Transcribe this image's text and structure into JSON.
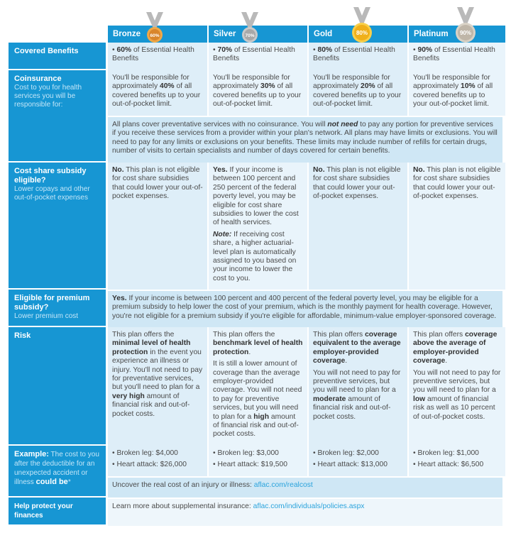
{
  "plans": [
    {
      "name": "Bronze",
      "medal": "60%",
      "color": "#d9852b",
      "ring": "#f0a847"
    },
    {
      "name": "Silver",
      "medal": "70%",
      "color": "#a8a8a8",
      "ring": "#c9c9c9"
    },
    {
      "name": "Gold",
      "medal": "80%",
      "color": "#f0b01a",
      "ring": "#f8cf4a"
    },
    {
      "name": "Platinum",
      "medal": "90%",
      "color": "#bfb6a8",
      "ring": "#d9d2c6"
    }
  ],
  "rows": {
    "covered": {
      "title": "Covered Benefits",
      "cells": [
        [
          {
            "t": "• "
          },
          {
            "t": "60%",
            "b": 1
          },
          {
            "t": " of Essential Health Benefits"
          }
        ],
        [
          {
            "t": "• "
          },
          {
            "t": "70%",
            "b": 1
          },
          {
            "t": " of Essential Health Benefits"
          }
        ],
        [
          {
            "t": "• "
          },
          {
            "t": "80%",
            "b": 1
          },
          {
            "t": " of Essential Health Benefits"
          }
        ],
        [
          {
            "t": "• "
          },
          {
            "t": "90%",
            "b": 1
          },
          {
            "t": " of Essential Health Benefits"
          }
        ]
      ]
    },
    "coinsurance": {
      "title": "Coinsurance",
      "subtitle": "Cost to you for health services you will be responsible for:",
      "cells": [
        [
          {
            "t": "You'll be responsible for approximately "
          },
          {
            "t": "40%",
            "b": 1
          },
          {
            "t": " of all covered benefits up to your out-of-pocket limit."
          }
        ],
        [
          {
            "t": "You'll be responsible for approximately "
          },
          {
            "t": "30%",
            "b": 1
          },
          {
            "t": " of all covered benefits up to your out-of-pocket limit."
          }
        ],
        [
          {
            "t": "You'll be responsible for approximately "
          },
          {
            "t": "20%",
            "b": 1
          },
          {
            "t": " of all covered benefits up to your out-of-pocket limit."
          }
        ],
        [
          {
            "t": "You'll be responsible for approximately "
          },
          {
            "t": "10%",
            "b": 1
          },
          {
            "t": " of all covered benefits up to your out-of-pocket limit."
          }
        ]
      ],
      "shared": [
        {
          "t": "All plans cover preventative services with no coinsurance. You will "
        },
        {
          "t": "not need",
          "i": 1
        },
        {
          "t": " to pay any portion for preventive services if you receive these services from a provider within your plan's network. All plans may have limits or exclusions. You will need to pay for any limits or exclusions on your benefits. These limits may include number of refills for certain drugs, number of visits to certain specialists and number of days covered for certain benefits."
        }
      ]
    },
    "costshare": {
      "title": "Cost share subsidy eligible?",
      "subtitle": "Lower copays and other out-of-pocket expenses",
      "cells": [
        [
          {
            "t": "No.",
            "b": 1
          },
          {
            "t": " This plan is not eligible for cost share subsidies that could lower your out-of-pocket expenses."
          }
        ],
        [
          {
            "t": "Yes.",
            "b": 1
          },
          {
            "t": " If your income is between 100 percent and 250 percent of the federal poverty level, you may be eligible for cost share subsidies to lower the cost of health services."
          },
          {
            "p": 1
          },
          {
            "t": "Note:",
            "i": 1
          },
          {
            "t": " If receiving cost share, a higher actuarial-level plan is automatically assigned to you based on your income to lower the cost to you."
          }
        ],
        [
          {
            "t": "No.",
            "b": 1
          },
          {
            "t": " This plan is not eligible for cost share subsidies that could lower your out-of-pocket expenses."
          }
        ],
        [
          {
            "t": "No.",
            "b": 1
          },
          {
            "t": " This plan is not eligible for cost share subsidies that could lower your out-of-pocket expenses."
          }
        ]
      ]
    },
    "premium": {
      "title": "Eligible for premium subsidy?",
      "subtitle": "Lower premium cost",
      "shared": [
        {
          "t": "Yes.",
          "b": 1
        },
        {
          "t": " If your income is between 100 percent and 400 percent of the federal poverty level, you may be eligible for a premium subsidy to help lower the cost of your premium, which is the monthly payment for health coverage. However, you're not eligible for a premium subsidy if you're eligible for affordable, minimum-value employer-sponsored coverage."
        }
      ]
    },
    "risk": {
      "title": "Risk",
      "cells": [
        [
          {
            "t": "This plan offers the "
          },
          {
            "t": "minimal level of health protection",
            "b": 1
          },
          {
            "t": " in the event you experience an illness or injury. You'll not need to pay for preventative services, but you'll need to plan for a "
          },
          {
            "t": "very high",
            "b": 1
          },
          {
            "t": " amount of financial risk and out-of-pocket costs."
          }
        ],
        [
          {
            "t": "This plan offers the "
          },
          {
            "t": "benchmark level of health protection",
            "b": 1
          },
          {
            "t": "."
          },
          {
            "p": 1
          },
          {
            "t": "It is still a lower amount of coverage than the average employer-provided coverage. You will not need to pay for preventive services, but you will need to plan for a "
          },
          {
            "t": "high",
            "b": 1
          },
          {
            "t": " amount of financial risk and out-of-pocket costs."
          }
        ],
        [
          {
            "t": "This plan offers "
          },
          {
            "t": "coverage equivalent to the average employer-provided coverage",
            "b": 1
          },
          {
            "t": "."
          },
          {
            "p": 1
          },
          {
            "t": "You will not need to pay for preventive services, but you will need to plan for a "
          },
          {
            "t": "moderate",
            "b": 1
          },
          {
            "t": " amount of financial risk and out-of-pocket costs."
          }
        ],
        [
          {
            "t": "This plan offers "
          },
          {
            "t": "coverage above the average of employer-provided coverage",
            "b": 1
          },
          {
            "t": "."
          },
          {
            "p": 1
          },
          {
            "t": "You will not need to pay for preventive services, but you will need to plan for a "
          },
          {
            "t": "low",
            "b": 1
          },
          {
            "t": " amount of financial risk as well as 10 percent of out-of-pocket costs."
          }
        ]
      ]
    },
    "example": {
      "title": "Example:",
      "subtitle_a": " The cost to you after the deductible for an unexpected accident or illness ",
      "subtitle_b": "could be",
      "subtitle_c": "*",
      "cells": [
        [
          {
            "t": "• Broken leg: $4,000"
          },
          {
            "p": 1
          },
          {
            "t": "• Heart attack: $26,000"
          }
        ],
        [
          {
            "t": "• Broken leg: $3,000"
          },
          {
            "p": 1
          },
          {
            "t": "• Heart attack: $19,500"
          }
        ],
        [
          {
            "t": "• Broken leg: $2,000"
          },
          {
            "p": 1
          },
          {
            "t": "• Heart attack: $13,000"
          }
        ],
        [
          {
            "t": "• Broken leg: $1,000"
          },
          {
            "p": 1
          },
          {
            "t": "• Heart attack: $6,500"
          }
        ]
      ],
      "shared": [
        {
          "t": "Uncover the real cost of an injury or illness: "
        },
        {
          "t": "aflac.com/realcost",
          "l": 1
        }
      ]
    },
    "help": {
      "title": "Help protect your finances",
      "shared": [
        {
          "t": "Learn more about supplemental insurance: "
        },
        {
          "t": "aflac.com/individuals/policies.aspx",
          "l": 1
        }
      ]
    }
  }
}
